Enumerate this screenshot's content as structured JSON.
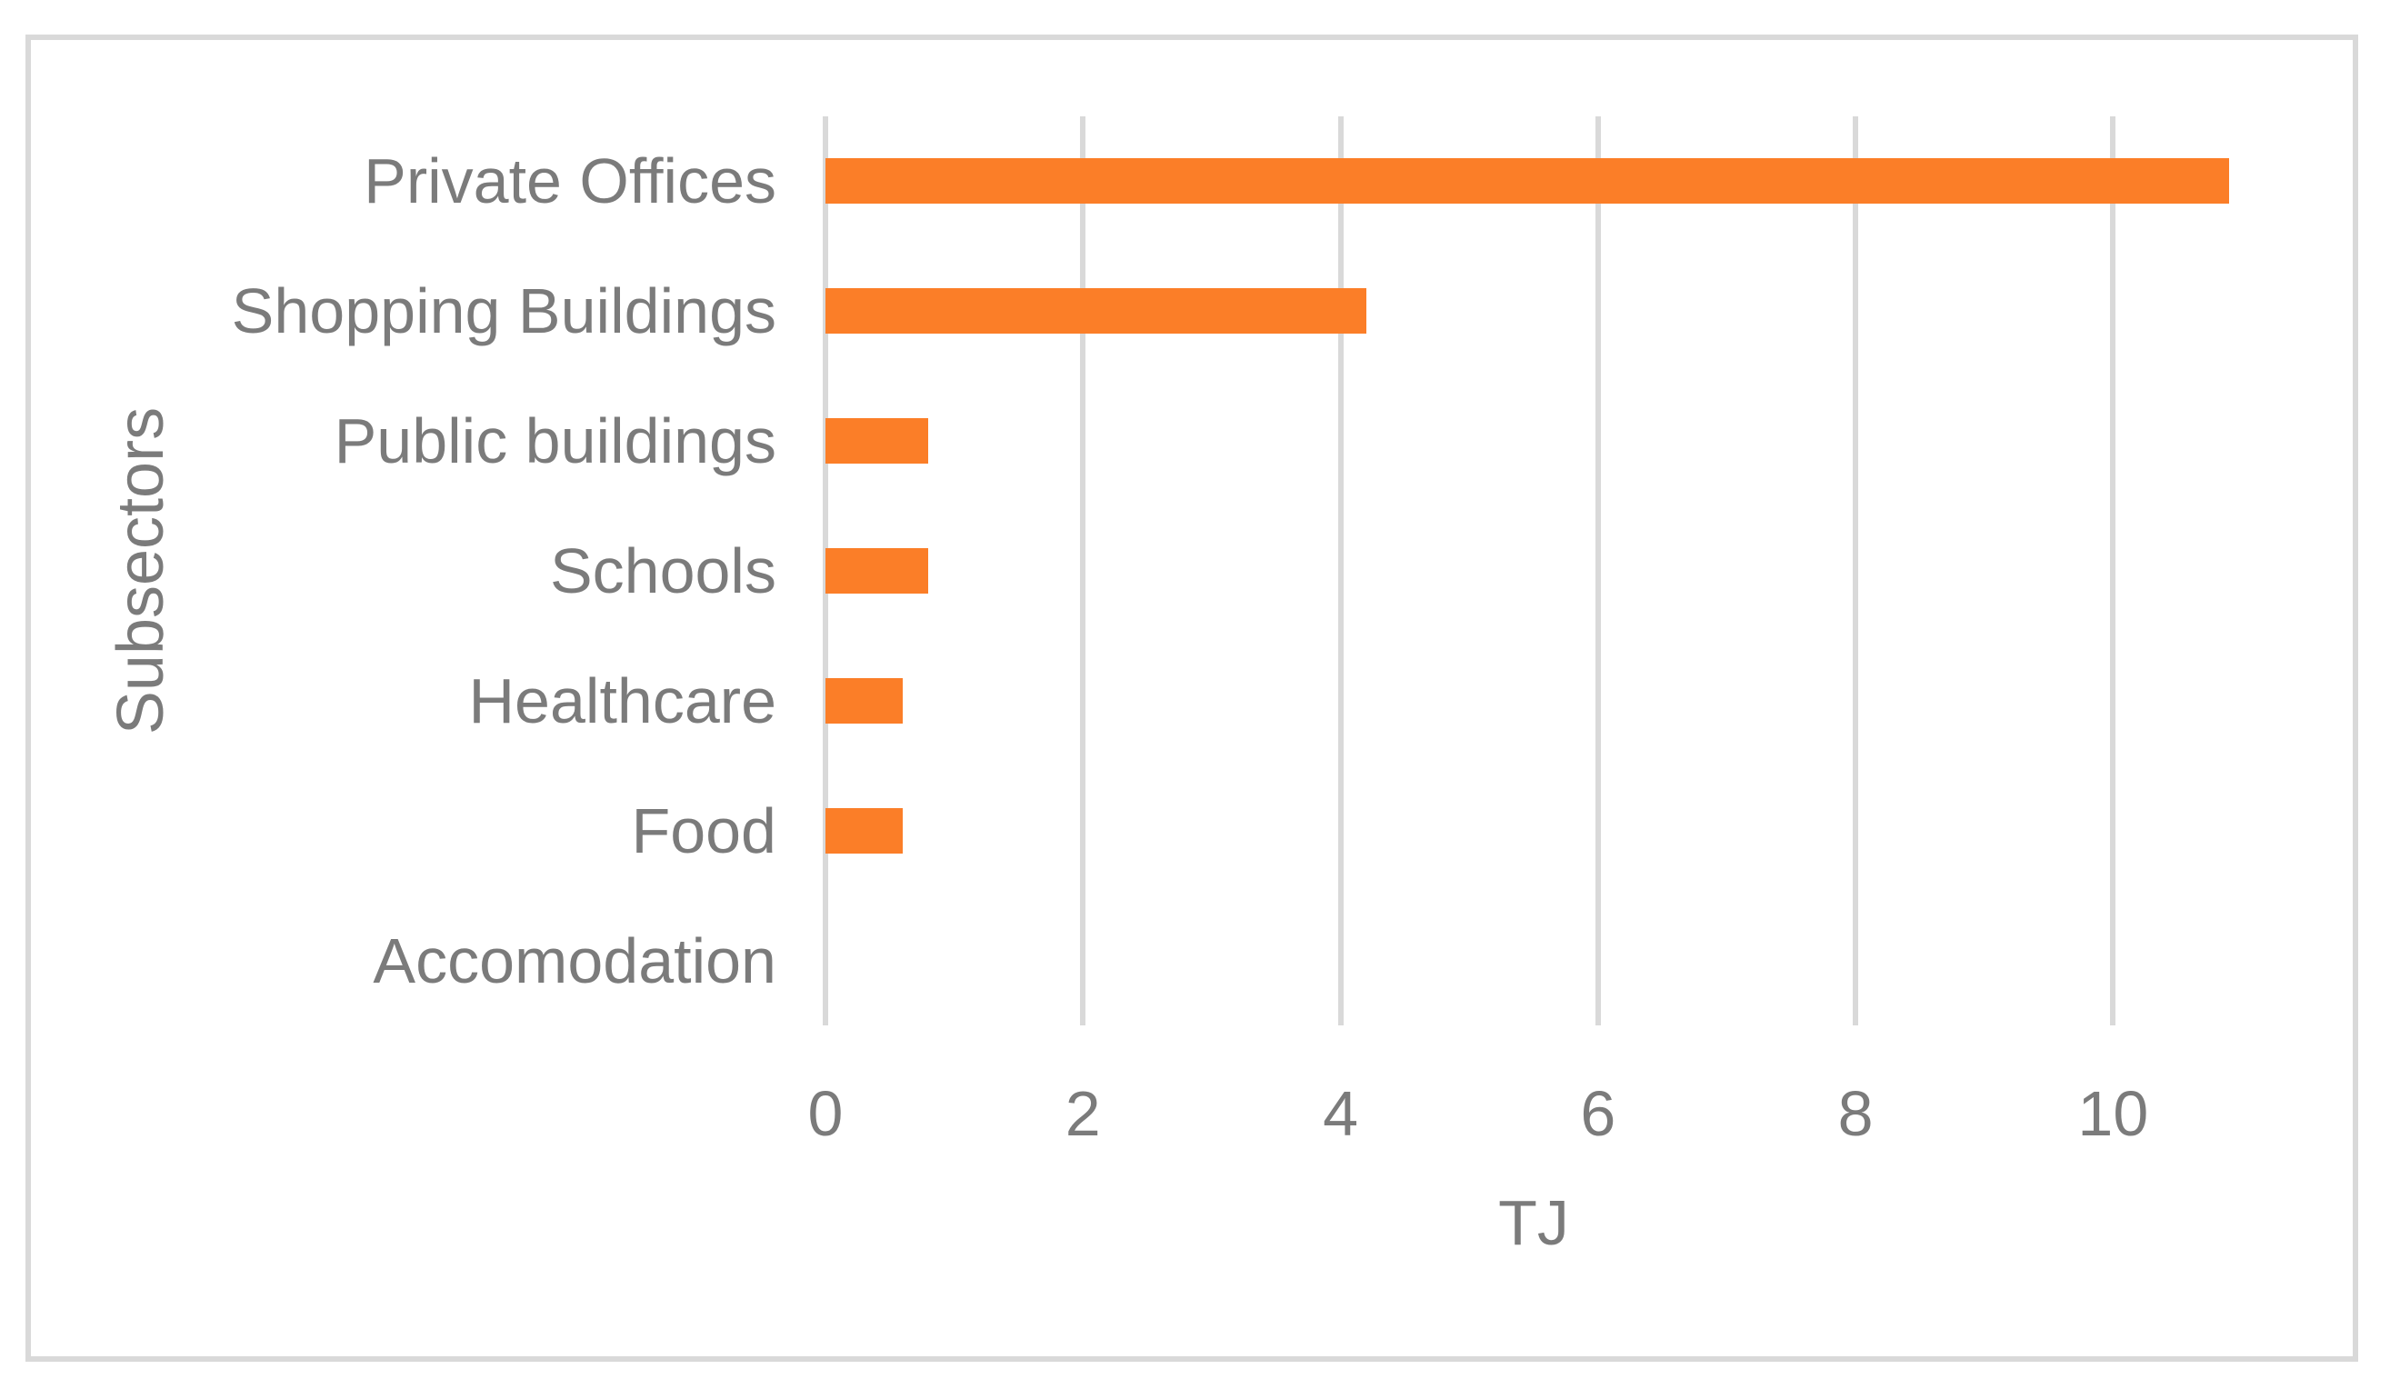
{
  "chart_data": {
    "type": "bar",
    "orientation": "horizontal",
    "title": "",
    "categories": [
      "Private Offices",
      "Shopping Buildings",
      "Public buildings",
      "Schools",
      "Healthcare",
      "Food",
      "Accomodation"
    ],
    "values": [
      10.9,
      4.2,
      0.8,
      0.8,
      0.6,
      0.6,
      0
    ],
    "xlabel": "TJ",
    "ylabel": "Subsectors",
    "xlim": [
      0,
      11
    ],
    "ticks": [
      0,
      2,
      4,
      6,
      8,
      10
    ],
    "grid": "vertical major gridlines only",
    "legend": "none",
    "bar_color": "#fb7e28",
    "text_color": "#7b7b7b",
    "gridline_color": "#d9d9d9",
    "frame_color": "#d9d9d9",
    "background_color": "#ffffff"
  }
}
